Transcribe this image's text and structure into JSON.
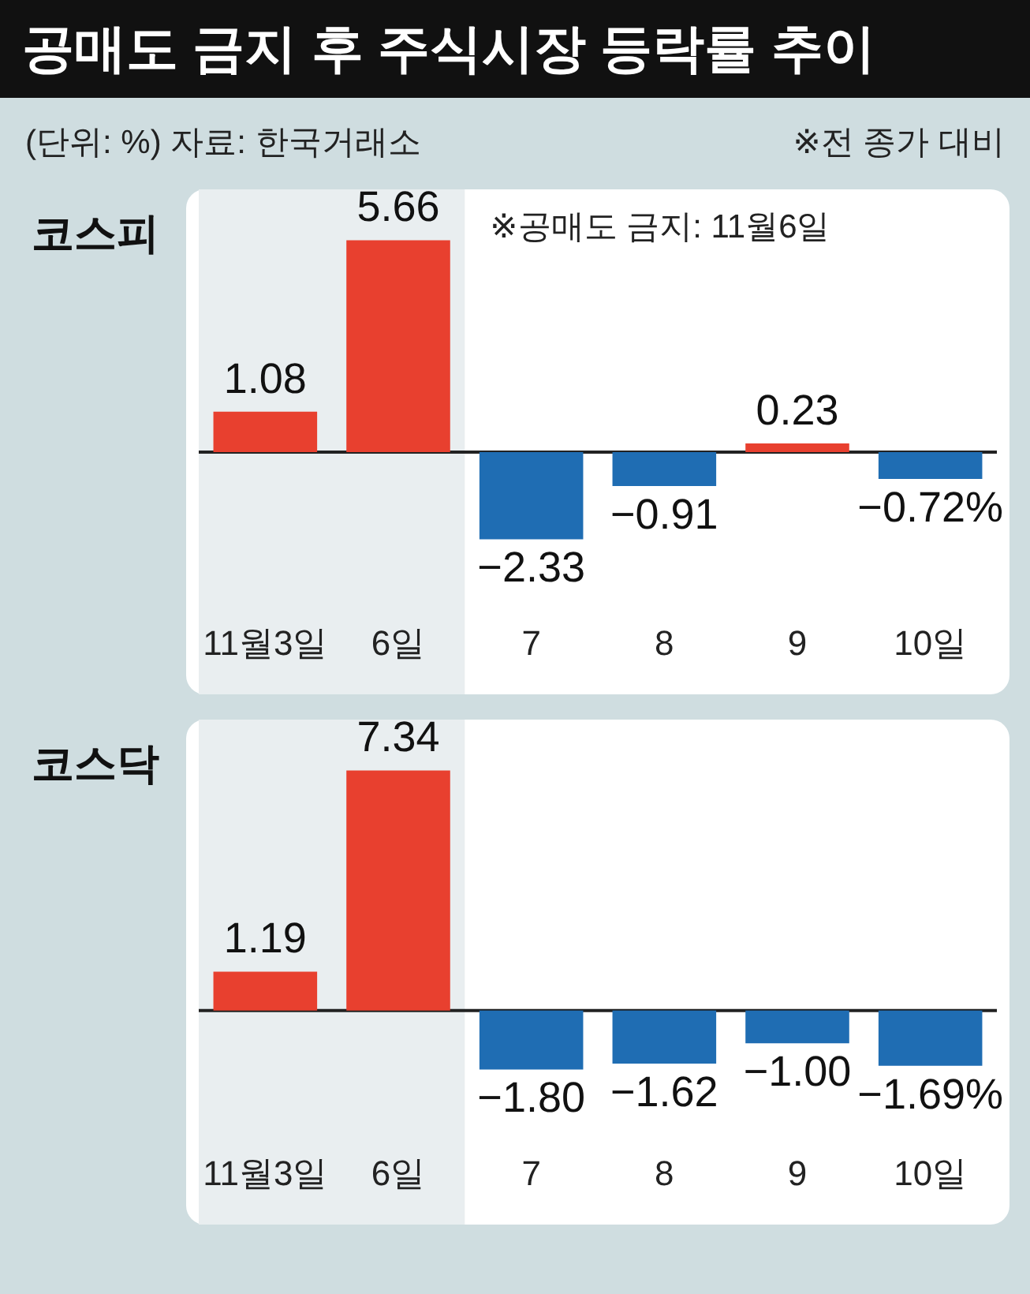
{
  "chart_data": [
    {
      "type": "bar",
      "title": "공매도 금지 후 주식시장 등락률 추이",
      "subtitle": "코스피",
      "annotations": [
        "(단위: %) 자료: 한국거래소",
        "※전 종가 대비"
      ],
      "categories": [
        "11월3일",
        "6일",
        "7",
        "8",
        "9",
        "10일"
      ],
      "values": [
        1.08,
        5.66,
        -2.33,
        -0.91,
        0.23,
        -0.72
      ],
      "colors": [
        "#e8402f",
        "#e8402f",
        "#1f6db3",
        "#1f6db3",
        "#e8402f",
        "#1f6db3"
      ],
      "value_labels": [
        "1.08",
        "5.66",
        "−2.33",
        "−0.91",
        "0.23",
        "−0.72%"
      ],
      "tick_labels": "x",
      "bands": [
        {
          "axis": "x",
          "from": "11월3일",
          "to": "6일",
          "label": "※공매도 금지: 11월6일",
          "color": "#e9eef0"
        }
      ]
    },
    {
      "type": "bar",
      "subtitle": "코스닥",
      "categories": [
        "11월3일",
        "6일",
        "7",
        "8",
        "9",
        "10일"
      ],
      "values": [
        1.19,
        7.34,
        -1.8,
        -1.62,
        -1.0,
        -1.69
      ],
      "colors": [
        "#e8402f",
        "#e8402f",
        "#1f6db3",
        "#1f6db3",
        "#1f6db3",
        "#1f6db3"
      ],
      "value_labels": [
        "1.19",
        "7.34",
        "−1.80",
        "−1.62",
        "−1.00",
        "−1.69%"
      ],
      "tick_labels": "x",
      "bands": [
        {
          "axis": "x",
          "from": "11월3일",
          "to": "6일",
          "color": "#e9eef0"
        }
      ]
    }
  ]
}
